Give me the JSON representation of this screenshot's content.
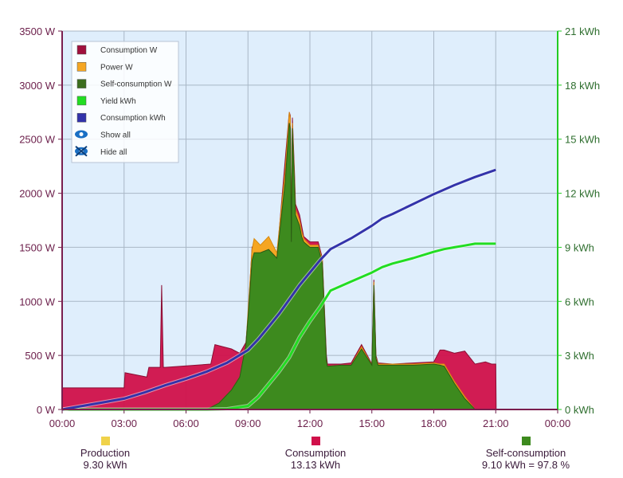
{
  "chart_data": {
    "type": "area",
    "x_ticks": [
      "00:00",
      "03:00",
      "06:00",
      "09:00",
      "12:00",
      "15:00",
      "18:00",
      "21:00",
      "00:00"
    ],
    "y_left_ticks": [
      "0 W",
      "500 W",
      "1000 W",
      "1500 W",
      "2000 W",
      "2500 W",
      "3000 W",
      "3500 W"
    ],
    "y_right_ticks": [
      "0 kWh",
      "3 kWh",
      "6 kWh",
      "9 kWh",
      "12 kWh",
      "15 kWh",
      "18 kWh",
      "21 kWh"
    ],
    "y_left_range": [
      0,
      3500
    ],
    "y_right_range": [
      0,
      21
    ],
    "x_range_hours": [
      0,
      24
    ],
    "grid": true,
    "legend_position": "top-left",
    "legend": [
      {
        "label": "Consumption W",
        "color": "#a0103c",
        "icon": "square"
      },
      {
        "label": "Power W",
        "color": "#f5a623",
        "icon": "square"
      },
      {
        "label": "Self-consumption W",
        "color": "#3d6e1e",
        "icon": "square"
      },
      {
        "label": "Yield kWh",
        "color": "#22dd22",
        "icon": "square"
      },
      {
        "label": "Consumption kWh",
        "color": "#3333aa",
        "icon": "square"
      },
      {
        "label": "Show all",
        "color": "#1a6fc4",
        "icon": "eye-icon"
      },
      {
        "label": "Hide all",
        "color": "#1a6fc4",
        "icon": "eye-crossed-icon"
      }
    ],
    "series": [
      {
        "name": "Consumption W",
        "axis": "left",
        "color": "#d0104a",
        "x": [
          0,
          0.02,
          2,
          3.0,
          3.05,
          4.1,
          4.2,
          4.75,
          4.82,
          4.9,
          5.0,
          7.2,
          7.4,
          8.2,
          8.6,
          8.9,
          9.0,
          9.2,
          9.3,
          9.6,
          10.0,
          10.4,
          10.8,
          11.0,
          11.05,
          11.1,
          11.15,
          11.25,
          11.3,
          11.5,
          11.6,
          11.7,
          12.0,
          12.4,
          12.6,
          12.8,
          12.85,
          13.5,
          14.0,
          14.5,
          15.0,
          15.1,
          15.2,
          15.3,
          16.0,
          17.0,
          18.0,
          18.3,
          18.5,
          19.0,
          19.5,
          20.0,
          20.5,
          20.8,
          21.0,
          21.02
        ],
        "y": [
          0,
          200,
          200,
          200,
          340,
          300,
          390,
          390,
          1150,
          390,
          390,
          420,
          600,
          560,
          520,
          620,
          850,
          1500,
          1480,
          1520,
          1500,
          1400,
          2300,
          2750,
          2720,
          1600,
          2700,
          2200,
          1900,
          1800,
          1700,
          1600,
          1550,
          1550,
          1400,
          500,
          420,
          420,
          430,
          600,
          420,
          1200,
          500,
          430,
          420,
          430,
          440,
          550,
          550,
          520,
          540,
          420,
          440,
          420,
          420,
          0
        ]
      },
      {
        "name": "Power W",
        "axis": "left",
        "color": "#f5a623",
        "x": [
          0,
          7.0,
          7.2,
          7.6,
          8.2,
          8.6,
          8.9,
          9.0,
          9.2,
          9.3,
          9.6,
          10.0,
          10.4,
          10.8,
          11.0,
          11.05,
          11.1,
          11.15,
          11.25,
          11.3,
          11.5,
          11.6,
          11.7,
          12.0,
          12.4,
          12.6,
          12.8,
          12.85,
          13.5,
          14.0,
          14.5,
          15.0,
          15.1,
          15.2,
          15.3,
          16.0,
          17.0,
          18.0,
          18.3,
          18.5,
          19.0,
          19.5,
          20.0,
          20.5,
          21.0
        ],
        "y": [
          0,
          0,
          20,
          60,
          180,
          300,
          600,
          900,
          1480,
          1580,
          1520,
          1600,
          1450,
          2200,
          2750,
          2700,
          1600,
          2650,
          2150,
          1850,
          1750,
          1650,
          1580,
          1520,
          1520,
          1380,
          450,
          400,
          410,
          410,
          580,
          410,
          1180,
          480,
          420,
          420,
          420,
          430,
          420,
          420,
          260,
          120,
          0,
          0,
          0
        ]
      },
      {
        "name": "Self-consumption W",
        "axis": "left",
        "color": "#3d8a1e",
        "x": [
          0,
          7.0,
          7.2,
          7.6,
          8.2,
          8.6,
          8.9,
          9.0,
          9.2,
          9.3,
          9.6,
          10.0,
          10.4,
          10.8,
          11.0,
          11.05,
          11.1,
          11.15,
          11.25,
          11.3,
          11.5,
          11.6,
          11.7,
          12.0,
          12.4,
          12.6,
          12.8,
          12.85,
          13.5,
          14.0,
          14.5,
          15.0,
          15.1,
          15.2,
          15.3,
          16.0,
          17.0,
          18.0,
          18.3,
          18.5,
          19.0,
          19.5,
          20.0,
          20.5,
          21.0
        ],
        "y": [
          0,
          0,
          20,
          60,
          180,
          300,
          600,
          850,
          1380,
          1450,
          1450,
          1480,
          1400,
          2100,
          2650,
          2600,
          1550,
          2600,
          2100,
          1800,
          1700,
          1600,
          1550,
          1500,
          1500,
          1350,
          450,
          400,
          410,
          410,
          560,
          410,
          1150,
          470,
          410,
          410,
          410,
          420,
          410,
          400,
          240,
          100,
          0,
          0,
          0
        ]
      },
      {
        "name": "Yield kWh",
        "axis": "right",
        "color": "#22dd22",
        "x": [
          0,
          7.0,
          8.0,
          9.0,
          9.5,
          10.0,
          10.5,
          11.0,
          11.5,
          12.0,
          12.5,
          13.0,
          14.0,
          15.0,
          15.5,
          16.0,
          17.0,
          18.0,
          18.5,
          19.0,
          19.5,
          20.0,
          20.5,
          21.0
        ],
        "y": [
          0,
          0,
          0.02,
          0.2,
          0.7,
          1.4,
          2.1,
          2.9,
          4.0,
          4.9,
          5.7,
          6.6,
          7.1,
          7.6,
          7.9,
          8.1,
          8.4,
          8.75,
          8.9,
          9.0,
          9.1,
          9.2,
          9.2,
          9.2
        ]
      },
      {
        "name": "Consumption kWh",
        "axis": "right",
        "color": "#3333aa",
        "x": [
          0,
          1,
          2,
          3,
          4,
          5,
          6,
          7,
          8,
          9,
          9.5,
          10,
          10.5,
          11,
          11.5,
          12,
          12.5,
          13,
          14,
          15,
          15.5,
          16,
          17,
          18,
          19,
          20,
          21
        ],
        "y": [
          0,
          0.2,
          0.4,
          0.6,
          0.95,
          1.35,
          1.7,
          2.1,
          2.6,
          3.3,
          3.9,
          4.6,
          5.3,
          6.1,
          6.9,
          7.6,
          8.3,
          8.9,
          9.5,
          10.2,
          10.6,
          10.85,
          11.4,
          11.95,
          12.45,
          12.9,
          13.3
        ]
      }
    ]
  },
  "summary": {
    "production": {
      "label": "Production",
      "value": "9.30 kWh",
      "color": "#f0d24a"
    },
    "consumption": {
      "label": "Consumption",
      "value": "13.13 kWh",
      "color": "#d0104a"
    },
    "self_consumption": {
      "label": "Self-consumption",
      "value": "9.10 kWh = 97.8 %",
      "color": "#3d8a1e"
    }
  }
}
